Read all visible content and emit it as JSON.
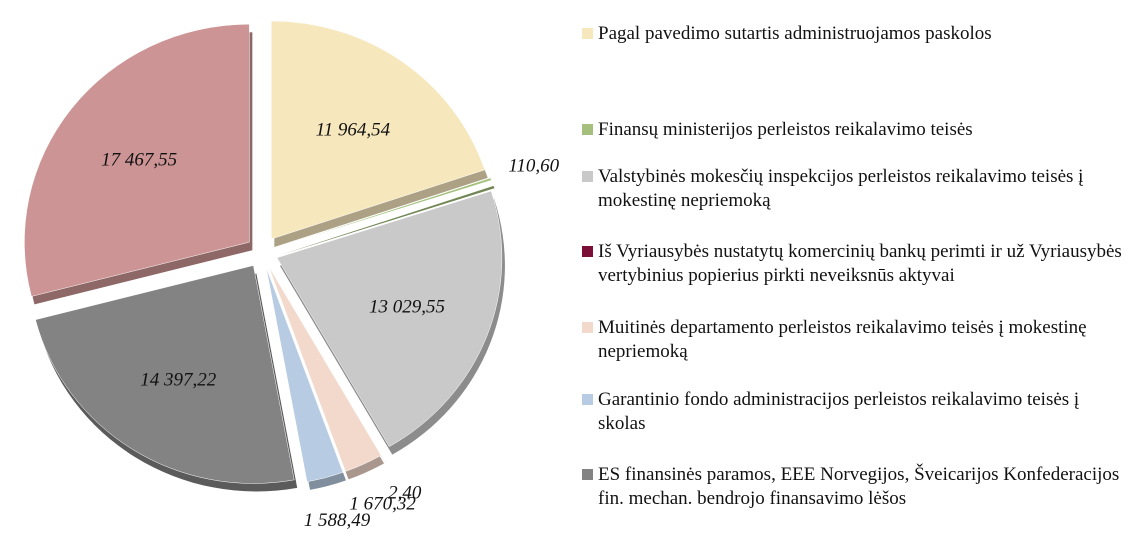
{
  "chart_data": {
    "type": "pie",
    "categories": [
      "Pagal pavedimo sutartis administruojamos paskolos",
      "Finansų ministerijos perleistos reikalavimo teisės",
      "Valstybinės mokesčių inspekcijos perleistos reikalavimo teisės  į mokestinę nepriemoką",
      "Iš Vyriausybės nustatytų komercinių bankų perimti ir už Vyriausybės vertybinius popierius pirkti neveiksnūs aktyvai",
      "Muitinės departamento  perleistos reikalavimo teisės į mokestinę nepriemoką",
      "Garantinio fondo administracijos perleistos reikalavimo teisės į skolas",
      "ES finansinės paramos, EEE Norvegijos, Šveicarijos Konfederacijos fin. mechan. bendrojo finansavimo lėšos",
      null
    ],
    "values": [
      11964.54,
      110.6,
      13029.55,
      2.4,
      1670.32,
      1588.49,
      14397.22,
      17467.55
    ],
    "value_labels": [
      "11 964,54",
      "110,60",
      "13 029,55",
      "2,40",
      "1 670,32",
      "1 588,49",
      "14 397,22",
      "17 467,55"
    ],
    "colors": [
      "#f6e7bd",
      "#a4c07c",
      "#c9c9c9",
      "#7a1038",
      "#f2d9cb",
      "#b7cbe3",
      "#838383",
      "#cc9494"
    ]
  }
}
